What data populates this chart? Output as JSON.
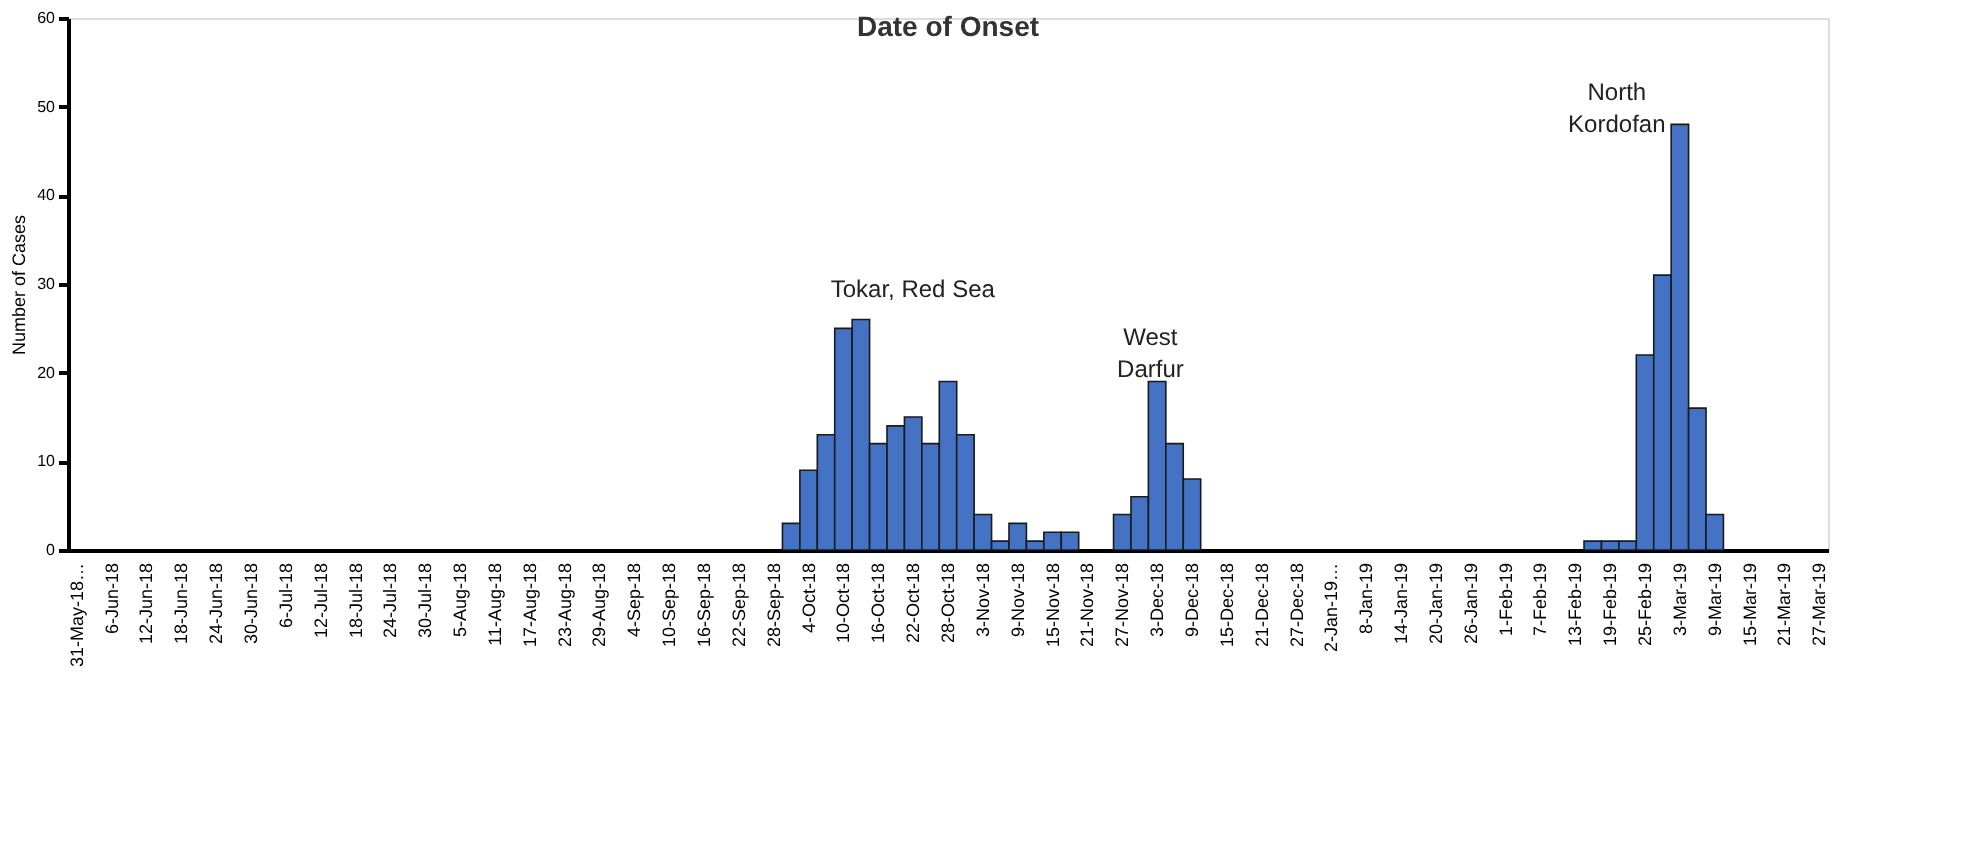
{
  "chart_data": {
    "type": "bar",
    "title": "Date of Onset",
    "ylabel": "Number of Cases",
    "categories": [
      "31-May-18…",
      null,
      "6-Jun-18",
      null,
      "12-Jun-18",
      null,
      "18-Jun-18",
      null,
      "24-Jun-18",
      null,
      "30-Jun-18",
      null,
      "6-Jul-18",
      null,
      "12-Jul-18",
      null,
      "18-Jul-18",
      null,
      "24-Jul-18",
      null,
      "30-Jul-18",
      null,
      "5-Aug-18",
      null,
      "11-Aug-18",
      null,
      "17-Aug-18",
      null,
      "23-Aug-18",
      null,
      "29-Aug-18",
      null,
      "4-Sep-18",
      null,
      "10-Sep-18",
      null,
      "16-Sep-18",
      null,
      "22-Sep-18",
      null,
      "28-Sep-18",
      null,
      "4-Oct-18",
      null,
      "10-Oct-18",
      null,
      "16-Oct-18",
      null,
      "22-Oct-18",
      null,
      "28-Oct-18",
      null,
      "3-Nov-18",
      null,
      "9-Nov-18",
      null,
      "15-Nov-18",
      null,
      "21-Nov-18",
      null,
      "27-Nov-18",
      null,
      "3-Dec-18",
      null,
      "9-Dec-18",
      null,
      "15-Dec-18",
      null,
      "21-Dec-18",
      null,
      "27-Dec-18",
      null,
      "2-Jan-19…",
      null,
      "8-Jan-19",
      null,
      "14-Jan-19",
      null,
      "20-Jan-19",
      null,
      "26-Jan-19",
      null,
      "1-Feb-19",
      null,
      "7-Feb-19",
      null,
      "13-Feb-19",
      null,
      "19-Feb-19",
      null,
      "25-Feb-19",
      null,
      "3-Mar-19",
      null,
      "9-Mar-19",
      null,
      "15-Mar-19",
      null,
      "21-Mar-19",
      null,
      "27-Mar-19"
    ],
    "values": [
      0,
      0,
      0,
      0,
      0,
      0,
      0,
      0,
      0,
      0,
      0,
      0,
      0,
      0,
      0,
      0,
      0,
      0,
      0,
      0,
      0,
      0,
      0,
      0,
      0,
      0,
      0,
      0,
      0,
      0,
      0,
      0,
      0,
      0,
      0,
      0,
      0,
      0,
      0,
      0,
      0,
      3,
      9,
      13,
      25,
      26,
      12,
      14,
      15,
      12,
      19,
      13,
      4,
      1,
      3,
      1,
      2,
      2,
      0,
      0,
      4,
      6,
      19,
      12,
      8,
      0,
      0,
      0,
      0,
      0,
      0,
      0,
      0,
      0,
      0,
      0,
      0,
      0,
      0,
      0,
      0,
      0,
      0,
      0,
      0,
      0,
      0,
      1,
      1,
      1,
      22,
      31,
      48,
      16,
      4,
      0,
      0,
      0,
      0,
      0,
      0
    ],
    "color": "#4472c4",
    "ylim": [
      0,
      60
    ],
    "yticks": [
      0,
      10,
      20,
      30,
      40,
      50,
      60
    ],
    "grid": false,
    "annotations": [
      "Tokar, Red Sea",
      "West\nDarfur",
      "North\nKordofan"
    ]
  }
}
